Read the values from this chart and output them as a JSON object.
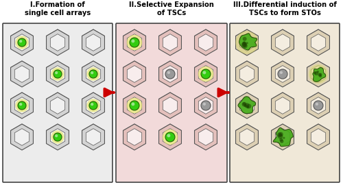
{
  "panel_titles": [
    "I.Formation of\nsingle cell arrays",
    "II.Selective Expansion\nof TSCs",
    "III.Differential induction of\nTSCs to form STOs"
  ],
  "panel_bg_colors": [
    "#ececec",
    "#f2dada",
    "#f0e8d8"
  ],
  "panel_border_color": "#444444",
  "fig_bg": "#ffffff",
  "arrow_color": "#cc0000",
  "hex_outer_fill_I": "#d0d0d0",
  "hex_outer_fill_II": "#e8c8c8",
  "hex_outer_fill_III": "#e0d0b8",
  "hex_wall_I": "#b8b8b8",
  "hex_wall_II": "#e0b0a8",
  "hex_wall_III": "#d4bfa0",
  "hex_inner_fill": "#f8f8f8",
  "hex_border_color": "#555555",
  "glow_color": "#e8e888",
  "cell_green": "#33cc11",
  "cell_green_dark": "#226600",
  "cell_gray": "#999999",
  "cell_gray_dark": "#555555",
  "organoid_light": "#55aa22",
  "organoid_dark": "#224400",
  "organoid_spot": "#336600"
}
